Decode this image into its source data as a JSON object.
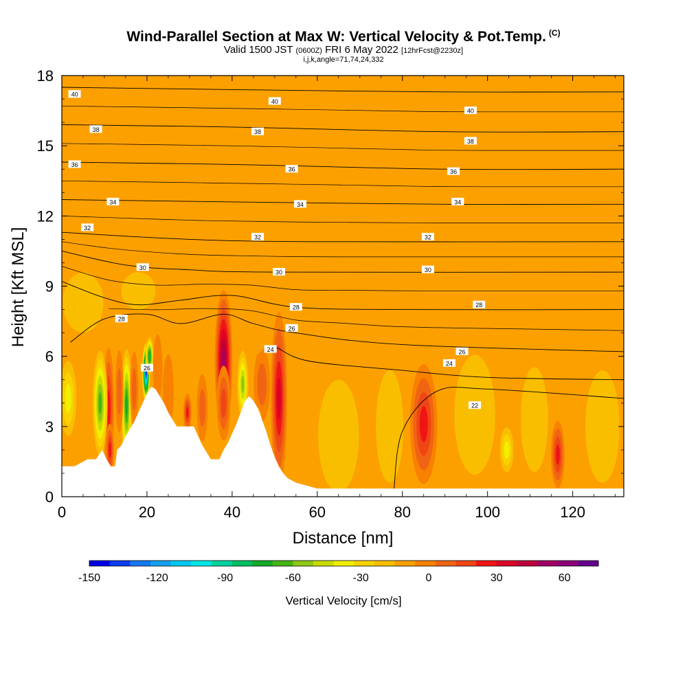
{
  "title": {
    "main": "Wind-Parallel Section at Max W: Vertical Velocity & Pot.Temp.",
    "copyright": "(C)",
    "valid_prefix": "Valid 1500 JST",
    "valid_utc": "(0600Z)",
    "valid_date": "FRI 6 May 2022",
    "forecast": "[12hrFcst@2230z]",
    "params": "i,j,k,angle=71,74,24,332"
  },
  "chart_data": {
    "type": "heatmap",
    "xlabel": "Distance [nm]",
    "ylabel": "Height [Kft MSL]",
    "xlim": [
      0,
      132
    ],
    "ylim": [
      0,
      18
    ],
    "x_ticks": [
      0,
      20,
      40,
      60,
      80,
      100,
      120
    ],
    "y_ticks": [
      0,
      3,
      6,
      9,
      12,
      15,
      18
    ],
    "colorbar": {
      "title": "Vertical Velocity [cm/s]",
      "ticks": [
        -150,
        -120,
        -90,
        -60,
        -30,
        0,
        30,
        60
      ],
      "min": -150,
      "max": 75,
      "step": 10,
      "colors": [
        "#0000e6",
        "#0a3cf0",
        "#1478f0",
        "#14a0f0",
        "#00c8f0",
        "#00e6e6",
        "#00d2a0",
        "#00be64",
        "#14aa28",
        "#46b414",
        "#8cc814",
        "#c8dc00",
        "#f0f000",
        "#fad200",
        "#fabe00",
        "#fca000",
        "#f88200",
        "#f06414",
        "#f04614",
        "#f01414",
        "#dc0028",
        "#be003c",
        "#a00064",
        "#8c0078",
        "#64008c"
      ]
    },
    "terrain": [
      [
        0,
        1.3
      ],
      [
        3,
        1.3
      ],
      [
        6,
        1.6
      ],
      [
        8,
        1.6
      ],
      [
        9.5,
        2
      ],
      [
        10.5,
        1.6
      ],
      [
        11.5,
        1.3
      ],
      [
        12.5,
        1.3
      ],
      [
        13,
        2
      ],
      [
        14,
        2.2
      ],
      [
        15,
        2.6
      ],
      [
        16,
        2.9
      ],
      [
        17,
        3.2
      ],
      [
        18,
        3.6
      ],
      [
        19,
        4.0
      ],
      [
        20,
        4.4
      ],
      [
        21,
        4.7
      ],
      [
        22,
        4.6
      ],
      [
        23,
        4.3
      ],
      [
        24,
        4.0
      ],
      [
        25,
        3.6
      ],
      [
        26,
        3.3
      ],
      [
        27,
        3.0
      ],
      [
        29,
        3.0
      ],
      [
        31,
        3.0
      ],
      [
        32,
        2.6
      ],
      [
        33,
        2.2
      ],
      [
        34,
        1.9
      ],
      [
        35,
        1.6
      ],
      [
        37,
        1.6
      ],
      [
        38,
        2.0
      ],
      [
        39,
        2.3
      ],
      [
        40,
        2.7
      ],
      [
        41,
        3.1
      ],
      [
        42,
        3.6
      ],
      [
        43,
        4.1
      ],
      [
        44,
        4.3
      ],
      [
        45,
        4.1
      ],
      [
        46,
        3.8
      ],
      [
        47,
        3.3
      ],
      [
        48,
        2.8
      ],
      [
        49,
        2.2
      ],
      [
        50,
        1.7
      ],
      [
        51,
        1.3
      ],
      [
        52,
        1.0
      ],
      [
        53,
        0.8
      ],
      [
        55,
        0.6
      ],
      [
        57,
        0.5
      ],
      [
        60,
        0.35
      ],
      [
        132,
        0.35
      ]
    ],
    "w_features": [
      {
        "x": 11,
        "y": 3.8,
        "sx": 0.8,
        "sy": 1.6,
        "value": 45
      },
      {
        "x": 11.3,
        "y": 2.0,
        "sx": 0.6,
        "sy": 0.7,
        "value": 45
      },
      {
        "x": 9,
        "y": 4.0,
        "sx": 1.1,
        "sy": 1.4,
        "value": -60
      },
      {
        "x": 15.2,
        "y": 3.9,
        "sx": 0.8,
        "sy": 1.5,
        "value": -70
      },
      {
        "x": 13.5,
        "y": 4.5,
        "sx": 0.6,
        "sy": 1.1,
        "value": 30
      },
      {
        "x": 17,
        "y": 4.6,
        "sx": 0.6,
        "sy": 1.0,
        "value": 25
      },
      {
        "x": 19.8,
        "y": 5.3,
        "sx": 0.6,
        "sy": 0.8,
        "value": -135
      },
      {
        "x": 20.6,
        "y": 6.0,
        "sx": 0.6,
        "sy": 0.5,
        "value": -80
      },
      {
        "x": 22.5,
        "y": 5.5,
        "sx": 0.7,
        "sy": 0.9,
        "value": 20
      },
      {
        "x": 25,
        "y": 4.5,
        "sx": 0.8,
        "sy": 1.0,
        "value": 20
      },
      {
        "x": 29.5,
        "y": 3.6,
        "sx": 0.6,
        "sy": 0.5,
        "value": 45
      },
      {
        "x": 33,
        "y": 3.8,
        "sx": 0.8,
        "sy": 0.9,
        "value": 25
      },
      {
        "x": 38,
        "y": 5.8,
        "sx": 1.3,
        "sy": 1.9,
        "value": 75
      },
      {
        "x": 38,
        "y": 4.0,
        "sx": 1.0,
        "sy": 1.0,
        "value": 40
      },
      {
        "x": 42.5,
        "y": 4.8,
        "sx": 0.8,
        "sy": 0.9,
        "value": -50
      },
      {
        "x": 51,
        "y": 4.2,
        "sx": 1.2,
        "sy": 2.3,
        "value": 60
      },
      {
        "x": 47,
        "y": 4.8,
        "sx": 1.2,
        "sy": 1.0,
        "value": 25
      },
      {
        "x": 85,
        "y": 3.1,
        "sx": 2.0,
        "sy": 1.6,
        "value": 50
      },
      {
        "x": 116.5,
        "y": 1.8,
        "sx": 1.0,
        "sy": 0.9,
        "value": 50
      },
      {
        "x": 104.5,
        "y": 2.0,
        "sx": 1.0,
        "sy": 0.6,
        "value": -25
      },
      {
        "x": 1.5,
        "y": 4.2,
        "sx": 1.2,
        "sy": 1.0,
        "value": -25
      },
      {
        "x": 5,
        "y": 8.3,
        "sx": 3.0,
        "sy": 0.8,
        "value": -10
      },
      {
        "x": 18,
        "y": 8.8,
        "sx": 2.5,
        "sy": 0.5,
        "value": -10
      },
      {
        "x": 46,
        "y": 2.5,
        "sx": 0.8,
        "sy": 0.8,
        "value": -20
      },
      {
        "x": 65,
        "y": 2.6,
        "sx": 3.0,
        "sy": 1.5,
        "value": -12
      },
      {
        "x": 77,
        "y": 3.0,
        "sx": 2.0,
        "sy": 1.5,
        "value": -10
      },
      {
        "x": 97,
        "y": 3.5,
        "sx": 3.0,
        "sy": 1.6,
        "value": -10
      },
      {
        "x": 111,
        "y": 3.3,
        "sx": 2.0,
        "sy": 1.4,
        "value": -12
      },
      {
        "x": 127,
        "y": 3.0,
        "sx": 2.5,
        "sy": 1.5,
        "value": -10
      },
      {
        "x": 7,
        "y": 16.5,
        "sx": 1.5,
        "sy": 1.5,
        "value": 5
      },
      {
        "x": 25,
        "y": 15.5,
        "sx": 1.5,
        "sy": 1.8,
        "value": 6
      },
      {
        "x": 55,
        "y": 12.5,
        "sx": 1.5,
        "sy": 1.5,
        "value": 6
      },
      {
        "x": 75,
        "y": 16.0,
        "sx": 2.0,
        "sy": 1.8,
        "value": 6
      },
      {
        "x": 96,
        "y": 13.8,
        "sx": 1.5,
        "sy": 2.0,
        "value": 6
      },
      {
        "x": 128,
        "y": 11.5,
        "sx": 1.0,
        "sy": 1.5,
        "value": 6
      },
      {
        "x": 45,
        "y": 7.0,
        "sx": 2.0,
        "sy": 0.6,
        "value": 8
      },
      {
        "x": 90,
        "y": 7.8,
        "sx": 3.0,
        "sy": 0.5,
        "value": 5
      }
    ],
    "theta_contours": [
      {
        "label": "40",
        "levels": [
          [
            0,
            17.5
          ],
          [
            40,
            17.4
          ],
          [
            90,
            17.3
          ],
          [
            132,
            17.3
          ]
        ],
        "labels_at": [
          [
            3,
            17.2
          ],
          [
            50,
            16.9
          ],
          [
            96,
            16.5
          ]
        ]
      },
      {
        "label": "38",
        "levels": [
          [
            0,
            15.9
          ],
          [
            40,
            15.8
          ],
          [
            90,
            15.6
          ],
          [
            132,
            15.6
          ]
        ],
        "labels_at": [
          [
            8,
            15.7
          ],
          [
            46,
            15.6
          ],
          [
            96,
            15.2
          ]
        ]
      },
      {
        "label": "36",
        "levels": [
          [
            0,
            14.3
          ],
          [
            40,
            14.2
          ],
          [
            90,
            14.0
          ],
          [
            132,
            14.0
          ]
        ],
        "labels_at": [
          [
            3,
            14.2
          ],
          [
            54,
            14.0
          ],
          [
            92,
            13.9
          ]
        ]
      },
      {
        "label": "34",
        "levels": [
          [
            0,
            12.7
          ],
          [
            40,
            12.6
          ],
          [
            90,
            12.5
          ],
          [
            132,
            12.5
          ]
        ],
        "labels_at": [
          [
            12,
            12.6
          ],
          [
            56,
            12.5
          ],
          [
            93,
            12.6
          ]
        ]
      },
      {
        "label": "32",
        "levels": [
          [
            0,
            11.3
          ],
          [
            30,
            11.0
          ],
          [
            60,
            10.9
          ],
          [
            132,
            10.9
          ]
        ],
        "labels_at": [
          [
            6,
            11.5
          ],
          [
            46,
            11.1
          ],
          [
            86,
            11.1
          ]
        ]
      },
      {
        "label": "30",
        "levels": [
          [
            0,
            10.5
          ],
          [
            15,
            9.9
          ],
          [
            30,
            9.7
          ],
          [
            50,
            9.6
          ],
          [
            132,
            9.6
          ]
        ],
        "labels_at": [
          [
            19,
            9.8
          ],
          [
            51,
            9.6
          ],
          [
            86,
            9.7
          ]
        ]
      },
      {
        "label": "28",
        "levels": [
          [
            0,
            9.2
          ],
          [
            10,
            8.5
          ],
          [
            18,
            8.2
          ],
          [
            28,
            8.4
          ],
          [
            40,
            8.6
          ],
          [
            55,
            8.1
          ],
          [
            80,
            8.0
          ],
          [
            132,
            8.0
          ]
        ],
        "labels_at": [
          [
            14,
            7.6
          ],
          [
            55,
            8.1
          ],
          [
            98,
            8.2
          ]
        ]
      },
      {
        "label": "26",
        "levels": [
          [
            2,
            6.6
          ],
          [
            10,
            7.6
          ],
          [
            20,
            7.8
          ],
          [
            28,
            7.4
          ],
          [
            38,
            7.8
          ],
          [
            45,
            7.4
          ],
          [
            55,
            7.0
          ],
          [
            80,
            6.5
          ],
          [
            132,
            6.2
          ]
        ],
        "labels_at": [
          [
            20,
            5.5
          ],
          [
            54,
            7.2
          ],
          [
            94,
            6.2
          ]
        ]
      },
      {
        "label": "24",
        "levels": [
          [
            48,
            6.2
          ],
          [
            50,
            6.4
          ],
          [
            58,
            5.8
          ],
          [
            80,
            5.4
          ],
          [
            100,
            5.1
          ],
          [
            132,
            5.0
          ]
        ],
        "labels_at": [
          [
            49,
            6.3
          ],
          [
            91,
            5.7
          ]
        ]
      },
      {
        "label": "22",
        "levels": [
          [
            78,
            0.3
          ],
          [
            80,
            2.8
          ],
          [
            88,
            4.5
          ],
          [
            100,
            4.6
          ],
          [
            132,
            4.2
          ]
        ],
        "labels_at": [
          [
            97,
            3.9
          ]
        ]
      }
    ]
  }
}
